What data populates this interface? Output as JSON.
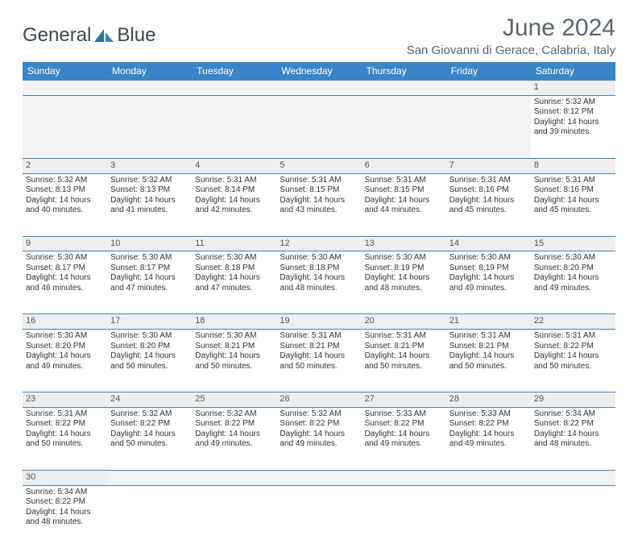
{
  "logo": {
    "textA": "General",
    "textB": "Blue"
  },
  "title": "June 2024",
  "location": "San Giovanni di Gerace, Calabria, Italy",
  "colors": {
    "header_bg": "#3a85c7",
    "header_fg": "#ffffff",
    "daynum_bg": "#eeeeee",
    "border": "#3a85c7",
    "text": "#333333",
    "title_color": "#5a6570"
  },
  "weekdays": [
    "Sunday",
    "Monday",
    "Tuesday",
    "Wednesday",
    "Thursday",
    "Friday",
    "Saturday"
  ],
  "weeks": [
    [
      null,
      null,
      null,
      null,
      null,
      null,
      {
        "n": "1",
        "sr": "Sunrise: 5:32 AM",
        "ss": "Sunset: 8:12 PM",
        "d1": "Daylight: 14 hours",
        "d2": "and 39 minutes."
      }
    ],
    [
      {
        "n": "2",
        "sr": "Sunrise: 5:32 AM",
        "ss": "Sunset: 8:13 PM",
        "d1": "Daylight: 14 hours",
        "d2": "and 40 minutes."
      },
      {
        "n": "3",
        "sr": "Sunrise: 5:32 AM",
        "ss": "Sunset: 8:13 PM",
        "d1": "Daylight: 14 hours",
        "d2": "and 41 minutes."
      },
      {
        "n": "4",
        "sr": "Sunrise: 5:31 AM",
        "ss": "Sunset: 8:14 PM",
        "d1": "Daylight: 14 hours",
        "d2": "and 42 minutes."
      },
      {
        "n": "5",
        "sr": "Sunrise: 5:31 AM",
        "ss": "Sunset: 8:15 PM",
        "d1": "Daylight: 14 hours",
        "d2": "and 43 minutes."
      },
      {
        "n": "6",
        "sr": "Sunrise: 5:31 AM",
        "ss": "Sunset: 8:15 PM",
        "d1": "Daylight: 14 hours",
        "d2": "and 44 minutes."
      },
      {
        "n": "7",
        "sr": "Sunrise: 5:31 AM",
        "ss": "Sunset: 8:16 PM",
        "d1": "Daylight: 14 hours",
        "d2": "and 45 minutes."
      },
      {
        "n": "8",
        "sr": "Sunrise: 5:31 AM",
        "ss": "Sunset: 8:16 PM",
        "d1": "Daylight: 14 hours",
        "d2": "and 45 minutes."
      }
    ],
    [
      {
        "n": "9",
        "sr": "Sunrise: 5:30 AM",
        "ss": "Sunset: 8:17 PM",
        "d1": "Daylight: 14 hours",
        "d2": "and 46 minutes."
      },
      {
        "n": "10",
        "sr": "Sunrise: 5:30 AM",
        "ss": "Sunset: 8:17 PM",
        "d1": "Daylight: 14 hours",
        "d2": "and 47 minutes."
      },
      {
        "n": "11",
        "sr": "Sunrise: 5:30 AM",
        "ss": "Sunset: 8:18 PM",
        "d1": "Daylight: 14 hours",
        "d2": "and 47 minutes."
      },
      {
        "n": "12",
        "sr": "Sunrise: 5:30 AM",
        "ss": "Sunset: 8:18 PM",
        "d1": "Daylight: 14 hours",
        "d2": "and 48 minutes."
      },
      {
        "n": "13",
        "sr": "Sunrise: 5:30 AM",
        "ss": "Sunset: 8:19 PM",
        "d1": "Daylight: 14 hours",
        "d2": "and 48 minutes."
      },
      {
        "n": "14",
        "sr": "Sunrise: 5:30 AM",
        "ss": "Sunset: 8:19 PM",
        "d1": "Daylight: 14 hours",
        "d2": "and 49 minutes."
      },
      {
        "n": "15",
        "sr": "Sunrise: 5:30 AM",
        "ss": "Sunset: 8:20 PM",
        "d1": "Daylight: 14 hours",
        "d2": "and 49 minutes."
      }
    ],
    [
      {
        "n": "16",
        "sr": "Sunrise: 5:30 AM",
        "ss": "Sunset: 8:20 PM",
        "d1": "Daylight: 14 hours",
        "d2": "and 49 minutes."
      },
      {
        "n": "17",
        "sr": "Sunrise: 5:30 AM",
        "ss": "Sunset: 8:20 PM",
        "d1": "Daylight: 14 hours",
        "d2": "and 50 minutes."
      },
      {
        "n": "18",
        "sr": "Sunrise: 5:30 AM",
        "ss": "Sunset: 8:21 PM",
        "d1": "Daylight: 14 hours",
        "d2": "and 50 minutes."
      },
      {
        "n": "19",
        "sr": "Sunrise: 5:31 AM",
        "ss": "Sunset: 8:21 PM",
        "d1": "Daylight: 14 hours",
        "d2": "and 50 minutes."
      },
      {
        "n": "20",
        "sr": "Sunrise: 5:31 AM",
        "ss": "Sunset: 8:21 PM",
        "d1": "Daylight: 14 hours",
        "d2": "and 50 minutes."
      },
      {
        "n": "21",
        "sr": "Sunrise: 5:31 AM",
        "ss": "Sunset: 8:21 PM",
        "d1": "Daylight: 14 hours",
        "d2": "and 50 minutes."
      },
      {
        "n": "22",
        "sr": "Sunrise: 5:31 AM",
        "ss": "Sunset: 8:22 PM",
        "d1": "Daylight: 14 hours",
        "d2": "and 50 minutes."
      }
    ],
    [
      {
        "n": "23",
        "sr": "Sunrise: 5:31 AM",
        "ss": "Sunset: 8:22 PM",
        "d1": "Daylight: 14 hours",
        "d2": "and 50 minutes."
      },
      {
        "n": "24",
        "sr": "Sunrise: 5:32 AM",
        "ss": "Sunset: 8:22 PM",
        "d1": "Daylight: 14 hours",
        "d2": "and 50 minutes."
      },
      {
        "n": "25",
        "sr": "Sunrise: 5:32 AM",
        "ss": "Sunset: 8:22 PM",
        "d1": "Daylight: 14 hours",
        "d2": "and 49 minutes."
      },
      {
        "n": "26",
        "sr": "Sunrise: 5:32 AM",
        "ss": "Sunset: 8:22 PM",
        "d1": "Daylight: 14 hours",
        "d2": "and 49 minutes."
      },
      {
        "n": "27",
        "sr": "Sunrise: 5:33 AM",
        "ss": "Sunset: 8:22 PM",
        "d1": "Daylight: 14 hours",
        "d2": "and 49 minutes."
      },
      {
        "n": "28",
        "sr": "Sunrise: 5:33 AM",
        "ss": "Sunset: 8:22 PM",
        "d1": "Daylight: 14 hours",
        "d2": "and 49 minutes."
      },
      {
        "n": "29",
        "sr": "Sunrise: 5:34 AM",
        "ss": "Sunset: 8:22 PM",
        "d1": "Daylight: 14 hours",
        "d2": "and 48 minutes."
      }
    ],
    [
      {
        "n": "30",
        "sr": "Sunrise: 5:34 AM",
        "ss": "Sunset: 8:22 PM",
        "d1": "Daylight: 14 hours",
        "d2": "and 48 minutes."
      },
      null,
      null,
      null,
      null,
      null,
      null
    ]
  ]
}
